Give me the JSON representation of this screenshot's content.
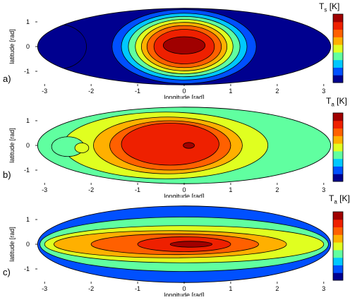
{
  "chart_data": [
    {
      "type": "contour",
      "panel_label": "a)",
      "xlabel": "longitude [rad]",
      "ylabel": "latitude [rad]",
      "colorbar_label": "T_s [K]",
      "colorbar_symbol": "T",
      "colorbar_sub": "s",
      "colorbar_unit": "[K]",
      "xlim": [
        -3.2,
        3.2
      ],
      "ylim": [
        -1.6,
        1.6
      ],
      "x_ticks": [
        -3,
        -2,
        -1,
        0,
        1,
        2,
        3
      ],
      "y_ticks": [
        1,
        0,
        -1
      ],
      "projection": "elliptical (Mollweide-like)",
      "background_level": 0,
      "contours": [
        {
          "level": 0,
          "cx": -2.7,
          "cy": 0.0,
          "rx": 0.6,
          "ry": 0.9
        },
        {
          "level": 1,
          "cx": 0.0,
          "cy": 0.0,
          "rx": 1.55,
          "ry": 1.5
        },
        {
          "level": 2,
          "cx": 0.0,
          "cy": 0.0,
          "rx": 1.35,
          "ry": 1.35
        },
        {
          "level": 3,
          "cx": 0.0,
          "cy": 0.0,
          "rx": 1.2,
          "ry": 1.22
        },
        {
          "level": 4,
          "cx": 0.0,
          "cy": 0.0,
          "rx": 1.05,
          "ry": 1.1
        },
        {
          "level": 5,
          "cx": 0.0,
          "cy": 0.0,
          "rx": 0.92,
          "ry": 0.98
        },
        {
          "level": 6,
          "cx": 0.0,
          "cy": 0.0,
          "rx": 0.8,
          "ry": 0.85
        },
        {
          "level": 7,
          "cx": 0.0,
          "cy": 0.0,
          "rx": 0.65,
          "ry": 0.7
        },
        {
          "level": 8,
          "cx": 0.0,
          "cy": 0.05,
          "rx": 0.45,
          "ry": 0.35
        }
      ]
    },
    {
      "type": "contour",
      "panel_label": "b)",
      "xlabel": "longitude [rad]",
      "ylabel": "latitude [rad]",
      "colorbar_label": "T_a [K]",
      "colorbar_symbol": "T",
      "colorbar_sub": "a",
      "colorbar_unit": "[K]",
      "xlim": [
        -3.2,
        3.2
      ],
      "ylim": [
        -1.6,
        1.6
      ],
      "x_ticks": [
        -3,
        -2,
        -1,
        0,
        1,
        2,
        3
      ],
      "y_ticks": [
        1,
        0,
        -1
      ],
      "projection": "elliptical (Mollweide-like)",
      "background_level": 3,
      "contours": [
        {
          "level": 4,
          "cx": -0.4,
          "cy": 0.0,
          "rx": 2.2,
          "ry": 1.35
        },
        {
          "level": 5,
          "cx": -0.35,
          "cy": 0.0,
          "rx": 1.6,
          "ry": 1.15
        },
        {
          "level": 6,
          "cx": -0.3,
          "cy": 0.0,
          "rx": 1.3,
          "ry": 1.0
        },
        {
          "level": 7,
          "cx": -0.3,
          "cy": 0.05,
          "rx": 1.05,
          "ry": 0.85
        },
        {
          "level": 8,
          "cx": 0.1,
          "cy": 0.0,
          "rx": 0.12,
          "ry": 0.12
        },
        {
          "level": 3,
          "cx": -2.5,
          "cy": -0.05,
          "rx": 0.35,
          "ry": 0.4
        },
        {
          "level": 4,
          "cx": -2.2,
          "cy": -0.1,
          "rx": 0.15,
          "ry": 0.2
        }
      ]
    },
    {
      "type": "contour",
      "panel_label": "c)",
      "xlabel": "longitude [rad]",
      "ylabel": "latitude [rad]",
      "colorbar_label": "T_a [K]",
      "colorbar_symbol": "T",
      "colorbar_sub": "a",
      "colorbar_unit": "[K]",
      "xlim": [
        -3.2,
        3.2
      ],
      "ylim": [
        -1.6,
        1.6
      ],
      "x_ticks": [
        -3,
        -2,
        -1,
        0,
        1,
        2,
        3
      ],
      "y_ticks": [
        1,
        0,
        -1
      ],
      "projection": "elliptical (Mollweide-like)",
      "background_level": 1,
      "contours": [
        {
          "level": 3,
          "cx": 0.0,
          "cy": 0.0,
          "rx": 3.1,
          "ry": 1.1
        },
        {
          "level": 4,
          "cx": 0.0,
          "cy": 0.0,
          "rx": 3.0,
          "ry": 0.75
        },
        {
          "level": 5,
          "cx": -0.3,
          "cy": 0.0,
          "rx": 2.5,
          "ry": 0.55
        },
        {
          "level": 6,
          "cx": -0.2,
          "cy": 0.0,
          "rx": 1.8,
          "ry": 0.42
        },
        {
          "level": 7,
          "cx": 0.0,
          "cy": 0.0,
          "rx": 1.0,
          "ry": 0.3
        },
        {
          "level": 8,
          "cx": 0.15,
          "cy": 0.0,
          "rx": 0.45,
          "ry": 0.12
        }
      ]
    }
  ],
  "colormap": [
    "#00008f",
    "#0050ff",
    "#00c8ff",
    "#60ffa0",
    "#e0ff20",
    "#ffb000",
    "#ff6000",
    "#ee2000",
    "#a00000"
  ]
}
